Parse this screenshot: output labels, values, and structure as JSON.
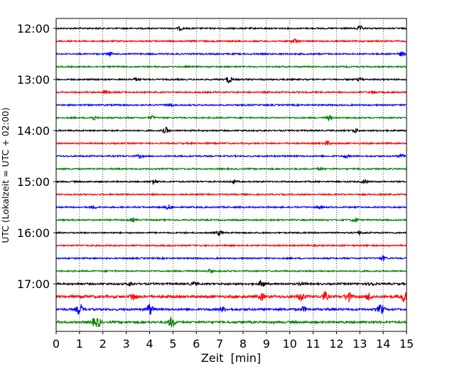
{
  "chart_data": {
    "type": "line",
    "title": "",
    "xlabel": "Zeit  [min]",
    "ylabel": "UTC (Lokalzeit = UTC + 02:00)",
    "xlim": [
      0,
      15
    ],
    "x_ticks": [
      "0",
      "1",
      "2",
      "3",
      "4",
      "5",
      "6",
      "7",
      "8",
      "9",
      "10",
      "11",
      "12",
      "13",
      "14",
      "15"
    ],
    "y_tick_labels": [
      "12:00",
      "13:00",
      "14:00",
      "15:00",
      "16:00",
      "17:00"
    ],
    "minutes_per_line": 15,
    "grid": "vertical dotted",
    "line_colors": [
      "#000000",
      "#ff0000",
      "#0000ff",
      "#008000"
    ],
    "traces": [
      {
        "start": "12:00",
        "color": "#000000",
        "amplitude": 1,
        "events": [
          {
            "t": 5.3,
            "a": 2
          },
          {
            "t": 13.0,
            "a": 3
          }
        ]
      },
      {
        "start": "12:15",
        "color": "#ff0000",
        "amplitude": 1,
        "events": [
          {
            "t": 10.2,
            "a": 3
          }
        ]
      },
      {
        "start": "12:30",
        "color": "#0000ff",
        "amplitude": 1,
        "events": [
          {
            "t": 2.3,
            "a": 2
          },
          {
            "t": 14.8,
            "a": 3
          }
        ]
      },
      {
        "start": "12:45",
        "color": "#008000",
        "amplitude": 1,
        "events": []
      },
      {
        "start": "13:00",
        "color": "#000000",
        "amplitude": 1,
        "events": [
          {
            "t": 3.4,
            "a": 2
          },
          {
            "t": 7.4,
            "a": 5
          },
          {
            "t": 13.0,
            "a": 2
          }
        ]
      },
      {
        "start": "13:15",
        "color": "#ff0000",
        "amplitude": 1,
        "events": [
          {
            "t": 2.1,
            "a": 2
          },
          {
            "t": 13.6,
            "a": 2
          }
        ]
      },
      {
        "start": "13:30",
        "color": "#0000ff",
        "amplitude": 1,
        "events": [
          {
            "t": 4.9,
            "a": 2
          }
        ]
      },
      {
        "start": "13:45",
        "color": "#008000",
        "amplitude": 1,
        "events": [
          {
            "t": 1.6,
            "a": 3
          },
          {
            "t": 4.1,
            "a": 2
          },
          {
            "t": 11.7,
            "a": 3
          }
        ]
      },
      {
        "start": "14:00",
        "color": "#000000",
        "amplitude": 1,
        "events": [
          {
            "t": 4.7,
            "a": 4
          },
          {
            "t": 12.8,
            "a": 3
          }
        ]
      },
      {
        "start": "14:15",
        "color": "#ff0000",
        "amplitude": 1,
        "events": [
          {
            "t": 11.6,
            "a": 3
          }
        ]
      },
      {
        "start": "14:30",
        "color": "#0000ff",
        "amplitude": 1,
        "events": [
          {
            "t": 3.6,
            "a": 2
          },
          {
            "t": 12.4,
            "a": 2
          },
          {
            "t": 14.8,
            "a": 3
          }
        ]
      },
      {
        "start": "14:45",
        "color": "#008000",
        "amplitude": 1,
        "events": [
          {
            "t": 11.3,
            "a": 2
          }
        ]
      },
      {
        "start": "15:00",
        "color": "#000000",
        "amplitude": 1,
        "events": [
          {
            "t": 4.2,
            "a": 4
          },
          {
            "t": 7.6,
            "a": 2
          },
          {
            "t": 13.2,
            "a": 2
          }
        ]
      },
      {
        "start": "15:15",
        "color": "#ff0000",
        "amplitude": 1,
        "events": []
      },
      {
        "start": "15:30",
        "color": "#0000ff",
        "amplitude": 1,
        "events": [
          {
            "t": 1.6,
            "a": 2
          },
          {
            "t": 4.8,
            "a": 3
          },
          {
            "t": 11.3,
            "a": 2
          }
        ]
      },
      {
        "start": "15:45",
        "color": "#008000",
        "amplitude": 1,
        "events": [
          {
            "t": 3.3,
            "a": 2
          },
          {
            "t": 12.8,
            "a": 3
          }
        ]
      },
      {
        "start": "16:00",
        "color": "#000000",
        "amplitude": 1,
        "events": [
          {
            "t": 7.0,
            "a": 3
          },
          {
            "t": 13.0,
            "a": 2
          }
        ]
      },
      {
        "start": "16:15",
        "color": "#ff0000",
        "amplitude": 1,
        "events": []
      },
      {
        "start": "16:30",
        "color": "#0000ff",
        "amplitude": 1,
        "events": [
          {
            "t": 14.0,
            "a": 3
          }
        ]
      },
      {
        "start": "16:45",
        "color": "#008000",
        "amplitude": 1,
        "events": [
          {
            "t": 6.6,
            "a": 2
          }
        ]
      },
      {
        "start": "17:00",
        "color": "#000000",
        "amplitude": 1.3,
        "events": [
          {
            "t": 3.2,
            "a": 3
          },
          {
            "t": 5.9,
            "a": 2
          },
          {
            "t": 8.8,
            "a": 5
          },
          {
            "t": 10.5,
            "a": 2
          },
          {
            "t": 13.5,
            "a": 3
          }
        ]
      },
      {
        "start": "17:15",
        "color": "#ff0000",
        "amplitude": 1.8,
        "events": [
          {
            "t": 3.3,
            "a": 5
          },
          {
            "t": 8.8,
            "a": 4
          },
          {
            "t": 10.5,
            "a": 6
          },
          {
            "t": 11.5,
            "a": 6
          },
          {
            "t": 12.5,
            "a": 7
          },
          {
            "t": 13.4,
            "a": 5
          },
          {
            "t": 14.9,
            "a": 7
          }
        ]
      },
      {
        "start": "17:30",
        "color": "#0000ff",
        "amplitude": 1.5,
        "events": [
          {
            "t": 1.0,
            "a": 8
          },
          {
            "t": 4.0,
            "a": 8
          },
          {
            "t": 7.1,
            "a": 3
          },
          {
            "t": 10.6,
            "a": 3
          },
          {
            "t": 13.9,
            "a": 7
          }
        ]
      },
      {
        "start": "17:45",
        "color": "#008000",
        "amplitude": 1.5,
        "events": [
          {
            "t": 1.6,
            "a": 4
          },
          {
            "t": 1.8,
            "a": 6
          },
          {
            "t": 4.9,
            "a": 5
          },
          {
            "t": 5.0,
            "a": 3
          }
        ]
      }
    ]
  }
}
